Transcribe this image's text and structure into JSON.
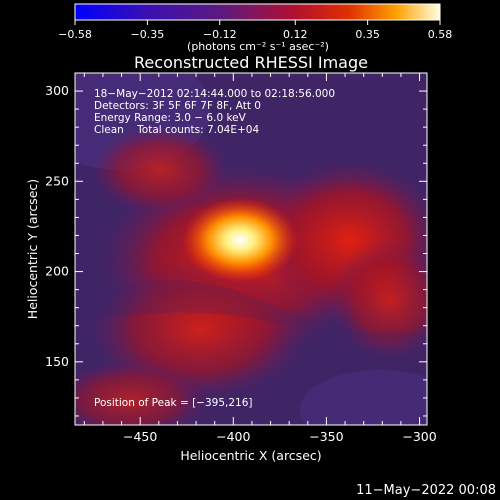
{
  "chart_data": {
    "type": "heatmap",
    "title": "Reconstructed RHESSI Image",
    "xlabel": "Heliocentric X (arcsec)",
    "ylabel": "Heliocentric Y (arcsec)",
    "xlim": [
      -485,
      -296
    ],
    "ylim": [
      115,
      310
    ],
    "x_ticks": [
      -450,
      -400,
      -350,
      -300
    ],
    "y_ticks": [
      150,
      200,
      250,
      300
    ],
    "x_tick_labels": [
      "−450",
      "−400",
      "−350",
      "−300"
    ],
    "y_tick_labels": [
      "150",
      "200",
      "250",
      "300"
    ],
    "colorbar": {
      "range": [
        -0.58,
        0.58
      ],
      "ticks": [
        -0.58,
        -0.35,
        -0.12,
        0.12,
        0.35,
        0.58
      ],
      "tick_labels": [
        "−0.58",
        "−0.35",
        "−0.12",
        "0.12",
        "0.35",
        "0.58"
      ],
      "units": "(photons cm⁻² s⁻¹ asec⁻²)"
    },
    "peak": [
      -395,
      216
    ],
    "annotation_lines": [
      "18−May−2012 02:14:44.000 to 02:18:56.000",
      "Detectors: 3F 5F 6F 7F 8F, Att 0",
      "Energy Range: 3.0 − 6.0 keV",
      "Clean    Total counts: 7.04E+04"
    ],
    "peak_label": "Position of Peak = [−395,216]",
    "timestamp": "11−May−2022 00:08"
  }
}
